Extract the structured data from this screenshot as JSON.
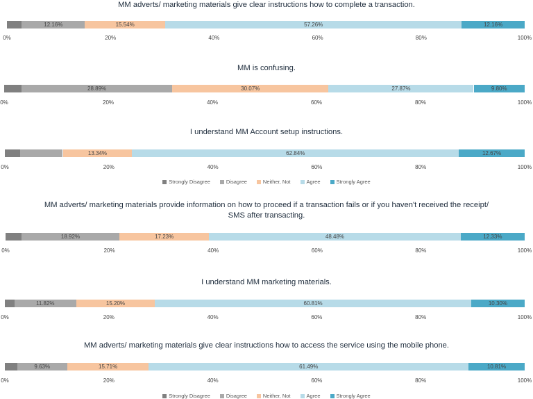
{
  "chart_data": {
    "type": "bar",
    "orientation": "horizontal-stacked-100",
    "categories": [
      "Strongly Disagree",
      "Disagree",
      "Neither, Not",
      "Agree",
      "Strongly Agree"
    ],
    "colors": [
      "#808080",
      "#a9a9a9",
      "#f7c59f",
      "#b7dbe8",
      "#4ba9c7"
    ],
    "x_ticks": [
      "0%",
      "20%",
      "40%",
      "60%",
      "80%",
      "100%"
    ],
    "xlim": [
      0,
      100
    ],
    "charts": [
      {
        "title": "MM adverts/ marketing materials give clear instructions how to complete a transaction.",
        "values": [
          2.88,
          12.16,
          15.54,
          57.26,
          12.16
        ],
        "labels": [
          "",
          "12.16%",
          "15.54%",
          "57.26%",
          "12.16%"
        ]
      },
      {
        "title": "MM is confusing.",
        "values": [
          3.37,
          28.89,
          30.07,
          27.87,
          9.8
        ],
        "labels": [
          "",
          "28.89%",
          "30.07%",
          "27.87%",
          "9.80%"
        ]
      },
      {
        "title": "I understand MM Account setup instructions.",
        "values": [
          2.91,
          8.24,
          13.34,
          62.84,
          12.67
        ],
        "labels": [
          "",
          "",
          "13.34%",
          "62.84%",
          "12.67%"
        ]
      },
      {
        "title": "MM adverts/ marketing materials provide  information on how to proceed if a transaction fails or if you haven't received the receipt/ SMS after transacting.",
        "values": [
          3.04,
          18.92,
          17.23,
          48.48,
          12.33
        ],
        "labels": [
          "",
          "18.92%",
          "17.23%",
          "48.48%",
          "12.33%"
        ]
      },
      {
        "title": "I understand MM marketing materials.",
        "values": [
          1.87,
          11.82,
          15.2,
          60.81,
          10.3
        ],
        "labels": [
          "",
          "11.82%",
          "15.20%",
          "60.81%",
          "10.30%"
        ]
      },
      {
        "title": "MM adverts/ marketing materials give clear instructions how to access the service using the mobile phone.",
        "values": [
          2.36,
          9.63,
          15.71,
          61.49,
          10.81
        ],
        "labels": [
          "",
          "9.63%",
          "15.71%",
          "61.49%",
          "10.81%"
        ]
      }
    ]
  }
}
